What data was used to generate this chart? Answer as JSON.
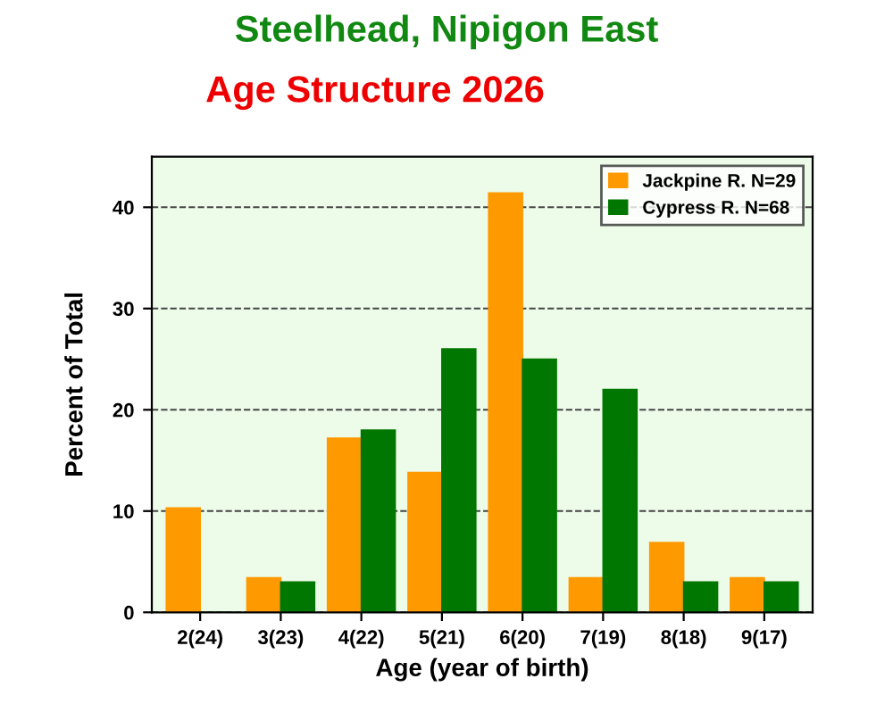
{
  "chart_data": {
    "type": "bar",
    "title": "Steelhead, Nipigon East",
    "subtitle": "Age Structure 2026",
    "xlabel": "Age (year of birth)",
    "ylabel": "Percent of Total",
    "categories": [
      "2(24)",
      "3(23)",
      "4(22)",
      "5(21)",
      "6(20)",
      "7(19)",
      "8(18)",
      "9(17)"
    ],
    "series": [
      {
        "name": "Jackpine R. N=29",
        "color": "#ff9900",
        "values": [
          10.3,
          3.4,
          17.2,
          13.8,
          41.4,
          3.4,
          6.9,
          3.4
        ]
      },
      {
        "name": "Cypress R. N=68",
        "color": "#007700",
        "values": [
          0,
          3,
          18,
          26,
          25,
          22,
          3,
          3
        ]
      }
    ],
    "ylim": [
      0,
      45
    ],
    "yticks": [
      0,
      10,
      20,
      30,
      40
    ],
    "grid": "y",
    "legend": "top right"
  }
}
